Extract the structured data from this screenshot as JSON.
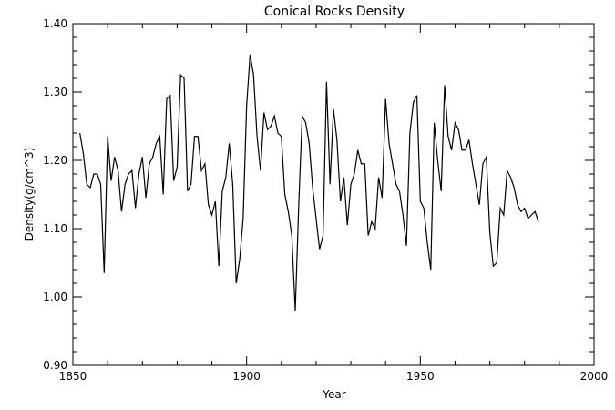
{
  "chart_data": {
    "type": "line",
    "title": "Conical Rocks Density",
    "xlabel": "Year",
    "ylabel": "Density(g/cm^3)",
    "xlim": [
      1850,
      2000
    ],
    "ylim": [
      0.9,
      1.4
    ],
    "xticks": [
      1850,
      1900,
      1950,
      2000
    ],
    "xtick_labels": [
      "1850",
      "1900",
      "1950",
      "2000"
    ],
    "yticks": [
      0.9,
      1.0,
      1.1,
      1.2,
      1.3,
      1.4
    ],
    "ytick_labels": [
      "0.90",
      "1.00",
      "1.10",
      "1.20",
      "1.30",
      "1.40"
    ],
    "grid": false,
    "color": "#000000",
    "x": [
      1852,
      1853,
      1854,
      1855,
      1856,
      1857,
      1858,
      1859,
      1860,
      1861,
      1862,
      1863,
      1864,
      1865,
      1866,
      1867,
      1868,
      1869,
      1870,
      1871,
      1872,
      1873,
      1874,
      1875,
      1876,
      1877,
      1878,
      1879,
      1880,
      1881,
      1882,
      1883,
      1884,
      1885,
      1886,
      1887,
      1888,
      1889,
      1890,
      1891,
      1892,
      1893,
      1894,
      1895,
      1896,
      1897,
      1898,
      1899,
      1900,
      1901,
      1902,
      1903,
      1904,
      1905,
      1906,
      1907,
      1908,
      1909,
      1910,
      1911,
      1912,
      1913,
      1914,
      1915,
      1916,
      1917,
      1918,
      1919,
      1920,
      1921,
      1922,
      1923,
      1924,
      1925,
      1926,
      1927,
      1928,
      1929,
      1930,
      1931,
      1932,
      1933,
      1934,
      1935,
      1936,
      1937,
      1938,
      1939,
      1940,
      1941,
      1942,
      1943,
      1944,
      1945,
      1946,
      1947,
      1948,
      1949,
      1950,
      1951,
      1952,
      1953,
      1954,
      1955,
      1956,
      1957,
      1958,
      1959,
      1960,
      1961,
      1962,
      1963,
      1964,
      1965,
      1966,
      1967,
      1968,
      1969,
      1970,
      1971,
      1972,
      1973,
      1974,
      1975,
      1976,
      1977,
      1978,
      1979,
      1980,
      1981,
      1982,
      1983,
      1984
    ],
    "y": [
      1.24,
      1.21,
      1.165,
      1.16,
      1.18,
      1.18,
      1.165,
      1.035,
      1.235,
      1.17,
      1.205,
      1.185,
      1.125,
      1.165,
      1.18,
      1.185,
      1.13,
      1.18,
      1.205,
      1.145,
      1.195,
      1.205,
      1.225,
      1.235,
      1.15,
      1.29,
      1.295,
      1.17,
      1.19,
      1.325,
      1.32,
      1.155,
      1.165,
      1.235,
      1.235,
      1.185,
      1.195,
      1.135,
      1.12,
      1.14,
      1.045,
      1.155,
      1.175,
      1.225,
      1.165,
      1.02,
      1.055,
      1.115,
      1.28,
      1.355,
      1.325,
      1.235,
      1.185,
      1.27,
      1.245,
      1.25,
      1.265,
      1.24,
      1.235,
      1.15,
      1.125,
      1.09,
      0.98,
      1.135,
      1.265,
      1.255,
      1.225,
      1.16,
      1.115,
      1.07,
      1.09,
      1.315,
      1.165,
      1.275,
      1.23,
      1.14,
      1.175,
      1.105,
      1.165,
      1.18,
      1.215,
      1.195,
      1.195,
      1.09,
      1.11,
      1.1,
      1.175,
      1.145,
      1.29,
      1.225,
      1.195,
      1.165,
      1.155,
      1.12,
      1.075,
      1.24,
      1.285,
      1.295,
      1.14,
      1.13,
      1.08,
      1.04,
      1.255,
      1.2,
      1.155,
      1.31,
      1.235,
      1.215,
      1.255,
      1.245,
      1.215,
      1.215,
      1.23,
      1.195,
      1.165,
      1.135,
      1.195,
      1.205,
      1.095,
      1.045,
      1.05,
      1.13,
      1.12,
      1.185,
      1.175,
      1.16,
      1.135,
      1.125,
      1.13,
      1.115,
      1.12,
      1.125,
      1.11
    ]
  }
}
